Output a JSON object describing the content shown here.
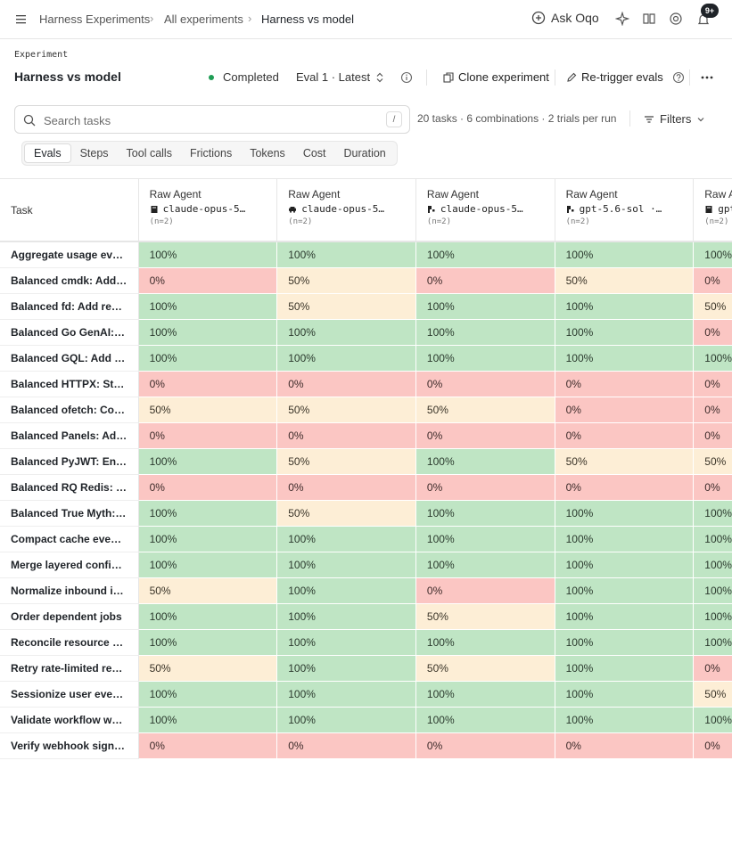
{
  "breadcrumbs": [
    "Harness Experiments",
    "All experiments",
    "Harness vs model"
  ],
  "topbar": {
    "ask_label": "Ask Oqo",
    "notifications_badge": "9+"
  },
  "header": {
    "label": "Experiment",
    "title": "Harness vs model",
    "status": "Completed",
    "status_color": "#1f9d55",
    "eval_select": "Eval 1 · Latest",
    "clone_label": "Clone experiment",
    "retrigger_label": "Re-trigger evals"
  },
  "search": {
    "placeholder": "Search tasks",
    "shortcut": "/"
  },
  "summary": "20 tasks · 6 combinations · 2 trials per run",
  "filters_label": "Filters",
  "tabs": [
    "Evals",
    "Steps",
    "Tool calls",
    "Frictions",
    "Tokens",
    "Cost",
    "Duration"
  ],
  "active_tab": "Evals",
  "table": {
    "task_header": "Task",
    "columns": [
      {
        "agent": "Raw Agent",
        "model": "claude-opus-5…",
        "icon": "book-icon",
        "n": "(n=2)"
      },
      {
        "agent": "Raw Agent",
        "model": "claude-opus-5…",
        "icon": "car-icon",
        "n": "(n=2)"
      },
      {
        "agent": "Raw Agent",
        "model": "claude-opus-5…",
        "icon": "pi-icon",
        "n": "(n=2)"
      },
      {
        "agent": "Raw Agent",
        "model": "gpt-5.6-sol ·…",
        "icon": "pi-icon",
        "n": "(n=2)"
      },
      {
        "agent": "Raw Agent",
        "model": "gpt-…",
        "icon": "book-icon",
        "n": "(n=2)"
      }
    ],
    "rows": [
      {
        "task": "Aggregate usage eve…",
        "values": [
          "100%",
          "100%",
          "100%",
          "100%",
          "100%"
        ]
      },
      {
        "task": "Balanced cmdk: Add …",
        "values": [
          "0%",
          "50%",
          "0%",
          "50%",
          "0%"
        ]
      },
      {
        "task": "Balanced fd: Add rep…",
        "values": [
          "100%",
          "50%",
          "100%",
          "100%",
          "50%"
        ]
      },
      {
        "task": "Balanced Go GenAI: …",
        "values": [
          "100%",
          "100%",
          "100%",
          "100%",
          "0%"
        ]
      },
      {
        "task": "Balanced GQL: Add p…",
        "values": [
          "100%",
          "100%",
          "100%",
          "100%",
          "100%"
        ]
      },
      {
        "task": "Balanced HTTPX: Str…",
        "values": [
          "0%",
          "0%",
          "0%",
          "0%",
          "0%"
        ]
      },
      {
        "task": "Balanced ofetch: Co…",
        "values": [
          "50%",
          "50%",
          "50%",
          "0%",
          "0%"
        ]
      },
      {
        "task": "Balanced Panels: Ad…",
        "values": [
          "0%",
          "0%",
          "0%",
          "0%",
          "0%"
        ]
      },
      {
        "task": "Balanced PyJWT: Enf…",
        "values": [
          "100%",
          "50%",
          "100%",
          "50%",
          "50%"
        ]
      },
      {
        "task": "Balanced RQ Redis: …",
        "values": [
          "0%",
          "0%",
          "0%",
          "0%",
          "0%"
        ]
      },
      {
        "task": "Balanced True Myth: …",
        "values": [
          "100%",
          "50%",
          "100%",
          "100%",
          "100%"
        ]
      },
      {
        "task": "Compact cache even…",
        "values": [
          "100%",
          "100%",
          "100%",
          "100%",
          "100%"
        ]
      },
      {
        "task": "Merge layered config…",
        "values": [
          "100%",
          "100%",
          "100%",
          "100%",
          "100%"
        ]
      },
      {
        "task": "Normalize inbound id…",
        "values": [
          "50%",
          "100%",
          "0%",
          "100%",
          "100%"
        ]
      },
      {
        "task": "Order dependent jobs",
        "values": [
          "100%",
          "100%",
          "50%",
          "100%",
          "100%"
        ]
      },
      {
        "task": "Reconcile resource s…",
        "values": [
          "100%",
          "100%",
          "100%",
          "100%",
          "100%"
        ]
      },
      {
        "task": "Retry rate-limited re…",
        "values": [
          "50%",
          "100%",
          "50%",
          "100%",
          "0%"
        ]
      },
      {
        "task": "Sessionize user even…",
        "values": [
          "100%",
          "100%",
          "100%",
          "100%",
          "50%"
        ]
      },
      {
        "task": "Validate workflow wa…",
        "values": [
          "100%",
          "100%",
          "100%",
          "100%",
          "100%"
        ]
      },
      {
        "task": "Verify webhook signa…",
        "values": [
          "0%",
          "0%",
          "0%",
          "0%",
          "0%"
        ]
      }
    ]
  },
  "colors": {
    "pass": "#bfe5c4",
    "partial": "#fdeed6",
    "fail": "#fbc6c3"
  }
}
